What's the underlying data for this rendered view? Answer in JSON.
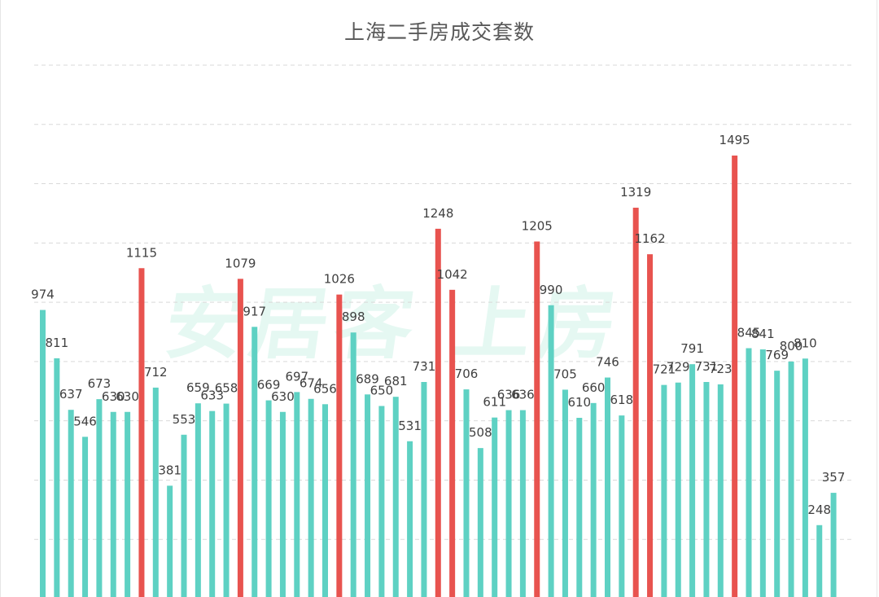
{
  "chart_data": {
    "type": "bar",
    "title": "上海二手房成交套数",
    "xlabel": "",
    "ylabel": "",
    "ylim": [
      0,
      1800
    ],
    "grid": true,
    "legend": "none",
    "colors": {
      "normal": "#5ed1c3",
      "highlight": "#e8534f"
    },
    "values": [
      974,
      811,
      637,
      546,
      673,
      630,
      630,
      1115,
      712,
      381,
      553,
      659,
      633,
      658,
      1079,
      917,
      669,
      630,
      697,
      674,
      656,
      1026,
      898,
      689,
      650,
      681,
      531,
      731,
      1248,
      1042,
      706,
      508,
      611,
      636,
      636,
      1205,
      990,
      705,
      610,
      660,
      746,
      618,
      1319,
      1162,
      721,
      729,
      791,
      731,
      723,
      1495,
      845,
      841,
      769,
      800,
      810,
      248,
      357
    ],
    "highlight": [
      false,
      false,
      false,
      false,
      false,
      false,
      false,
      true,
      false,
      false,
      false,
      false,
      false,
      false,
      true,
      false,
      false,
      false,
      false,
      false,
      false,
      true,
      false,
      false,
      false,
      false,
      false,
      false,
      true,
      true,
      false,
      false,
      false,
      false,
      false,
      true,
      false,
      false,
      false,
      false,
      false,
      false,
      true,
      true,
      false,
      false,
      false,
      false,
      false,
      true,
      false,
      false,
      false,
      false,
      false,
      false,
      false
    ]
  },
  "watermark": "安居客 上房"
}
